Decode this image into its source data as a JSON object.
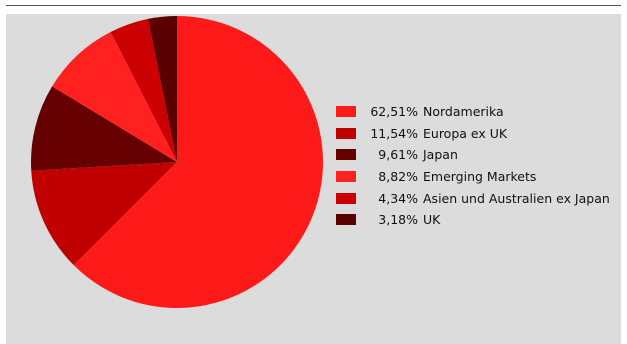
{
  "chart_data": {
    "type": "pie",
    "title": "",
    "slices": [
      {
        "label": "Nordamerika",
        "value": 62.51,
        "display": "62,51%",
        "color": "#ff1a1a"
      },
      {
        "label": "Europa ex UK",
        "value": 11.54,
        "display": "11,54%",
        "color": "#c00000"
      },
      {
        "label": "Japan",
        "value": 9.61,
        "display": "9,61%",
        "color": "#660000"
      },
      {
        "label": "Emerging Markets",
        "value": 8.82,
        "display": "8,82%",
        "color": "#ff2020"
      },
      {
        "label": "Asien und Australien ex Japan",
        "value": 4.34,
        "display": "4,34%",
        "color": "#cc0000"
      },
      {
        "label": "UK",
        "value": 3.18,
        "display": "3,18%",
        "color": "#5a0000"
      }
    ],
    "legend_position": "right",
    "start_angle": "top",
    "direction": "clockwise"
  },
  "colors": {
    "background": "#dcdcdc",
    "page": "#ffffff",
    "separator": "#555555"
  }
}
